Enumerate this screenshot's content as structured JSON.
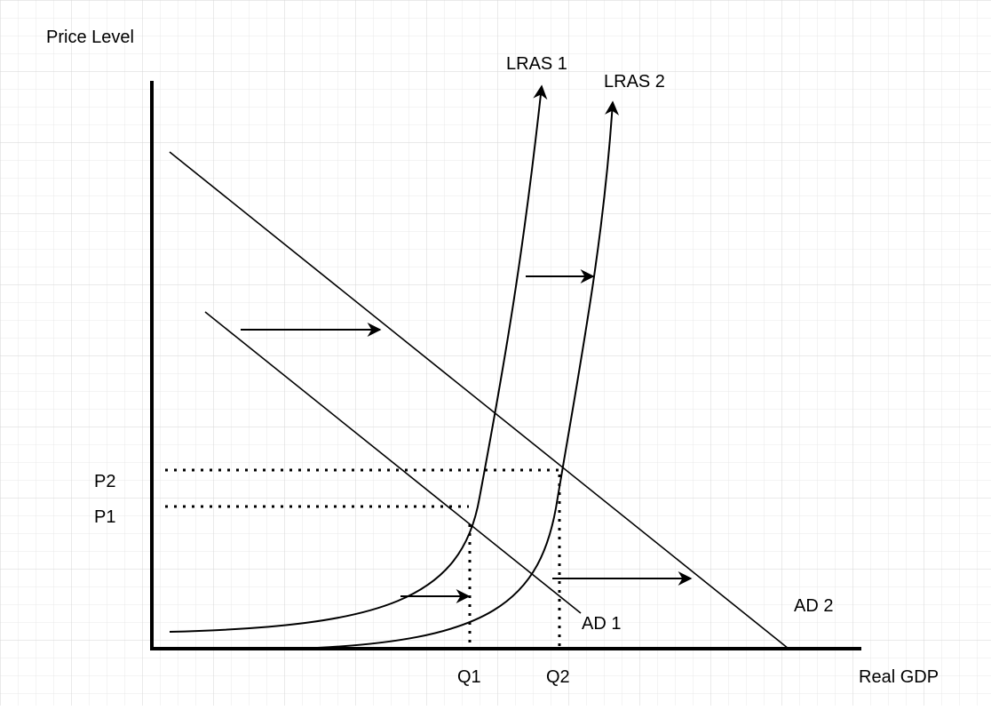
{
  "labels": {
    "y_axis": "Price Level",
    "x_axis": "Real GDP",
    "lras1": "LRAS 1",
    "lras2": "LRAS 2",
    "ad1": "AD 1",
    "ad2": "AD 2",
    "p1": "P1",
    "p2": "P2",
    "q1": "Q1",
    "q2": "Q2"
  },
  "colors": {
    "grid": "#dedede",
    "ink": "#000000",
    "background": "#ffffff"
  }
}
